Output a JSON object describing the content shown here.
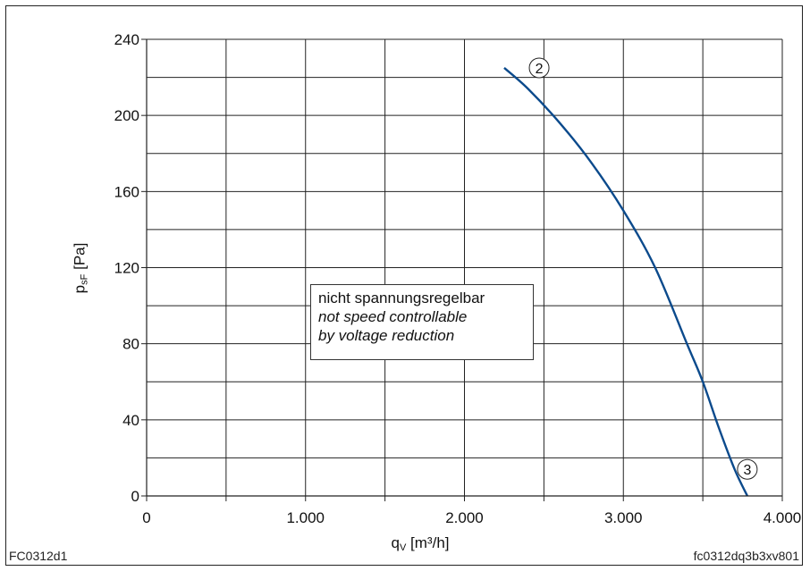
{
  "chart_data": {
    "type": "line",
    "xlabel_main": "q",
    "xlabel_sub": "V",
    "xlabel_unit": "[m³/h]",
    "ylabel_main": "p",
    "ylabel_sub": "sF",
    "ylabel_unit": "[Pa]",
    "xlim": [
      0,
      4000
    ],
    "ylim": [
      0,
      240
    ],
    "x_ticks": [
      0,
      1000,
      2000,
      3000,
      4000
    ],
    "x_tick_labels": [
      "0",
      "1.000",
      "2.000",
      "3.000",
      "4.000"
    ],
    "y_ticks": [
      0,
      40,
      80,
      120,
      160,
      200,
      240
    ],
    "y_tick_labels": [
      "0",
      "40",
      "80",
      "120",
      "160",
      "200",
      "240"
    ],
    "grid": true,
    "series": [
      {
        "color": "#0b4a8c",
        "x": [
          2250,
          2400,
          2600,
          2800,
          3000,
          3200,
          3400,
          3500,
          3600,
          3700,
          3780
        ],
        "y": [
          225,
          214,
          196,
          175,
          150,
          120,
          80,
          60,
          36,
          14,
          0
        ]
      }
    ],
    "markers": [
      {
        "label": "2",
        "x": 2470,
        "y": 225
      },
      {
        "label": "3",
        "x": 3780,
        "y": 14
      }
    ]
  },
  "annotation": {
    "line1": "nicht spannungsregelbar",
    "line2": "not speed controllable",
    "line3": "by voltage reduction"
  },
  "footer": {
    "left_code": "FC0312d1",
    "right_code": "fc0312dq3b3xv801"
  }
}
